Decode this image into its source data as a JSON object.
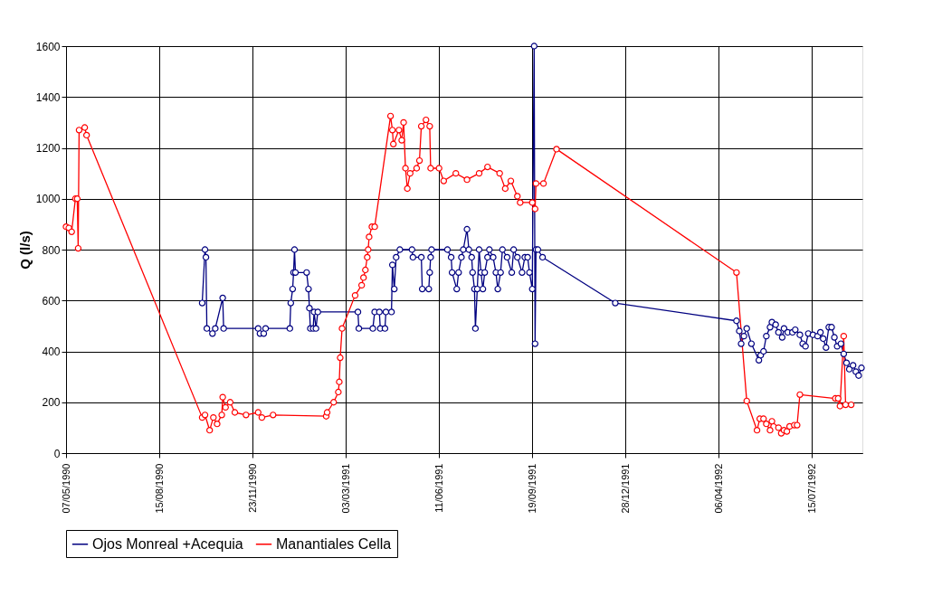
{
  "chart_data": {
    "type": "line",
    "ylabel": "Q (l/s)",
    "xlim": [
      "1990-05-07",
      "1992-09-07"
    ],
    "xticks": [
      {
        "value": "1990-05-07",
        "label": "07/05/1990"
      },
      {
        "value": "1990-08-15",
        "label": "15/08/1990"
      },
      {
        "value": "1990-11-23",
        "label": "23/11/1990"
      },
      {
        "value": "1991-03-03",
        "label": "03/03/1991"
      },
      {
        "value": "1991-06-11",
        "label": "11/06/1991"
      },
      {
        "value": "1991-09-19",
        "label": "19/09/1991"
      },
      {
        "value": "1991-12-28",
        "label": "28/12/1991"
      },
      {
        "value": "1992-04-06",
        "label": "06/04/1992"
      },
      {
        "value": "1992-07-15",
        "label": "15/07/1992"
      }
    ],
    "ylim": [
      0,
      1600
    ],
    "yticks": [
      0,
      200,
      400,
      600,
      800,
      1000,
      1200,
      1400,
      1600
    ],
    "grid": true,
    "legend": "bottom",
    "marker": "circle",
    "line_style": "solid",
    "series": [
      {
        "name": "Ojos Monreal +Acequia",
        "color": "#000080",
        "x": [
          "1990-09-30",
          "1990-10-03",
          "1990-10-04",
          "1990-10-05",
          "1990-10-11",
          "1990-10-14",
          "1990-10-22",
          "1990-10-23",
          "1990-11-29",
          "1990-12-01",
          "1990-12-05",
          "1990-12-07",
          "1991-01-02",
          "1991-01-03",
          "1991-01-05",
          "1991-01-06",
          "1991-01-07",
          "1991-01-08",
          "1991-01-20",
          "1991-01-22",
          "1991-01-23",
          "1991-01-24",
          "1991-01-27",
          "1991-01-28",
          "1991-01-30",
          "1991-02-01",
          "1991-03-16",
          "1991-03-17",
          "1991-04-01",
          "1991-04-03",
          "1991-04-08",
          "1991-04-09",
          "1991-04-14",
          "1991-04-15",
          "1991-04-21",
          "1991-04-22",
          "1991-04-24",
          "1991-04-26",
          "1991-04-30",
          "1991-05-13",
          "1991-05-14",
          "1991-05-23",
          "1991-05-24",
          "1991-05-31",
          "1991-06-01",
          "1991-06-02",
          "1991-06-03",
          "1991-06-20",
          "1991-06-24",
          "1991-06-25",
          "1991-06-30",
          "1991-07-02",
          "1991-07-05",
          "1991-07-07",
          "1991-07-11",
          "1991-07-13",
          "1991-07-16",
          "1991-07-17",
          "1991-07-19",
          "1991-07-20",
          "1991-07-22",
          "1991-07-24",
          "1991-07-26",
          "1991-07-28",
          "1991-07-30",
          "1991-08-02",
          "1991-08-04",
          "1991-08-08",
          "1991-08-11",
          "1991-08-13",
          "1991-08-16",
          "1991-08-18",
          "1991-08-23",
          "1991-08-28",
          "1991-08-30",
          "1991-09-03",
          "1991-09-08",
          "1991-09-11",
          "1991-09-14",
          "1991-09-16",
          "1991-09-19",
          "1991-09-21",
          "1991-09-22",
          "1991-09-23",
          "1991-09-25",
          "1991-09-30",
          "1991-12-17",
          "1992-04-25",
          "1992-04-28",
          "1992-04-30",
          "1992-05-03",
          "1992-05-06",
          "1992-05-11",
          "1992-05-19",
          "1992-05-21",
          "1992-05-24",
          "1992-05-27",
          "1992-05-31",
          "1992-06-02",
          "1992-06-06",
          "1992-06-09",
          "1992-06-13",
          "1992-06-15",
          "1992-06-19",
          "1992-06-24",
          "1992-06-27",
          "1992-07-02",
          "1992-07-05",
          "1992-07-08",
          "1992-07-11",
          "1992-07-16",
          "1992-07-21",
          "1992-07-24",
          "1992-07-27",
          "1992-07-30",
          "1992-08-02",
          "1992-08-05",
          "1992-08-08",
          "1992-08-11",
          "1992-08-15",
          "1992-08-18",
          "1992-08-21",
          "1992-08-24",
          "1992-08-28",
          "1992-08-31",
          "1992-09-03",
          "1992-09-06"
        ],
        "values": [
          590,
          800,
          770,
          490,
          470,
          490,
          610,
          490,
          490,
          470,
          470,
          490,
          490,
          590,
          645,
          710,
          800,
          710,
          710,
          645,
          570,
          490,
          490,
          555,
          490,
          555,
          555,
          490,
          490,
          555,
          555,
          490,
          490,
          555,
          555,
          740,
          645,
          770,
          800,
          800,
          770,
          770,
          645,
          645,
          710,
          770,
          800,
          800,
          770,
          710,
          645,
          710,
          770,
          800,
          880,
          800,
          770,
          710,
          645,
          490,
          645,
          800,
          710,
          645,
          710,
          770,
          800,
          770,
          710,
          645,
          710,
          800,
          770,
          710,
          800,
          770,
          710,
          770,
          770,
          710,
          645,
          1600,
          430,
          800,
          800,
          770,
          590,
          520,
          480,
          430,
          460,
          490,
          430,
          365,
          385,
          400,
          460,
          495,
          515,
          505,
          475,
          455,
          490,
          475,
          475,
          485,
          465,
          430,
          420,
          470,
          465,
          460,
          475,
          450,
          415,
          495,
          495,
          455,
          420,
          430,
          390,
          355,
          330,
          345,
          320,
          305,
          335
        ]
      },
      {
        "name": "Manantiales Cella",
        "color": "#ff0000",
        "x": [
          "1990-05-07",
          "1990-05-10",
          "1990-05-13",
          "1990-05-17",
          "1990-05-19",
          "1990-05-20",
          "1990-05-21",
          "1990-05-27",
          "1990-05-29",
          "1990-09-30",
          "1990-10-03",
          "1990-10-08",
          "1990-10-12",
          "1990-10-16",
          "1990-10-21",
          "1990-10-22",
          "1990-10-25",
          "1990-10-30",
          "1990-11-04",
          "1990-11-16",
          "1990-11-29",
          "1990-12-03",
          "1990-12-15",
          "1991-02-10",
          "1991-02-11",
          "1991-02-18",
          "1991-02-23",
          "1991-02-24",
          "1991-02-25",
          "1991-02-27",
          "1991-03-13",
          "1991-03-20",
          "1991-03-22",
          "1991-03-24",
          "1991-03-26",
          "1991-03-27",
          "1991-03-28",
          "1991-03-31",
          "1991-04-03",
          "1991-04-20",
          "1991-04-22",
          "1991-04-23",
          "1991-04-29",
          "1991-05-02",
          "1991-05-04",
          "1991-05-06",
          "1991-05-08",
          "1991-05-11",
          "1991-05-18",
          "1991-05-21",
          "1991-05-23",
          "1991-05-28",
          "1991-06-01",
          "1991-06-02",
          "1991-06-11",
          "1991-06-16",
          "1991-06-29",
          "1991-07-11",
          "1991-07-24",
          "1991-08-02",
          "1991-08-15",
          "1991-08-21",
          "1991-08-27",
          "1991-09-03",
          "1991-09-06",
          "1991-09-19",
          "1991-09-22",
          "1991-09-23",
          "1991-10-01",
          "1991-10-15",
          "1992-04-25",
          "1992-05-06",
          "1992-05-17",
          "1992-05-20",
          "1992-05-24",
          "1992-05-27",
          "1992-05-31",
          "1992-06-02",
          "1992-06-09",
          "1992-06-12",
          "1992-06-15",
          "1992-06-18",
          "1992-06-21",
          "1992-06-26",
          "1992-06-29",
          "1992-07-02",
          "1992-08-09",
          "1992-08-12",
          "1992-08-14",
          "1992-08-18",
          "1992-08-20",
          "1992-08-26"
        ],
        "values": [
          890,
          885,
          870,
          1000,
          1000,
          805,
          1270,
          1280,
          1250,
          140,
          150,
          90,
          140,
          115,
          150,
          220,
          180,
          200,
          160,
          150,
          160,
          140,
          150,
          145,
          160,
          200,
          240,
          280,
          375,
          490,
          620,
          660,
          690,
          720,
          770,
          800,
          850,
          890,
          890,
          1325,
          1270,
          1215,
          1270,
          1230,
          1300,
          1120,
          1040,
          1100,
          1120,
          1150,
          1285,
          1310,
          1285,
          1120,
          1120,
          1070,
          1100,
          1075,
          1100,
          1125,
          1100,
          1040,
          1070,
          1010,
          985,
          985,
          960,
          1060,
          1060,
          1195,
          710,
          205,
          90,
          135,
          135,
          115,
          90,
          125,
          100,
          78,
          90,
          85,
          105,
          110,
          110,
          230,
          215,
          215,
          185,
          460,
          190,
          190
        ]
      }
    ]
  }
}
